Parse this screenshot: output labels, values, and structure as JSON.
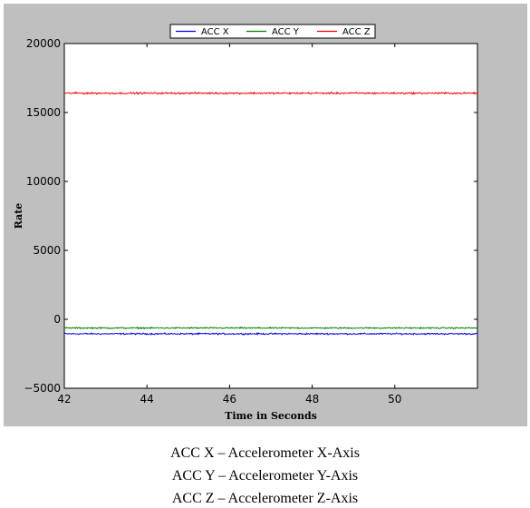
{
  "chart_data": {
    "type": "line",
    "title": "",
    "xlabel": "Time in Seconds",
    "ylabel": "Rate",
    "xlim": [
      42,
      52
    ],
    "ylim": [
      -5000,
      20000
    ],
    "x_ticks": [
      42,
      44,
      46,
      48,
      50
    ],
    "y_ticks": [
      -5000,
      0,
      5000,
      10000,
      15000,
      20000
    ],
    "x_tick_labels": [
      "42",
      "44",
      "46",
      "48",
      "50"
    ],
    "y_tick_labels": [
      "−5000",
      "0",
      "5000",
      "10000",
      "15000",
      "20000"
    ],
    "legend_position": "top-center",
    "grid": false,
    "series": [
      {
        "name": "ACC X",
        "color": "#0000ff",
        "mean": -1050,
        "noise_amplitude": 80
      },
      {
        "name": "ACC Y",
        "color": "#008000",
        "mean": -630,
        "noise_amplitude": 70
      },
      {
        "name": "ACC Z",
        "color": "#ff0000",
        "mean": 16400,
        "noise_amplitude": 90
      }
    ]
  },
  "caption": {
    "lines": [
      "ACC X – Accelerometer X-Axis",
      "ACC Y – Accelerometer Y-Axis",
      "ACC Z – Accelerometer Z-Axis"
    ]
  }
}
